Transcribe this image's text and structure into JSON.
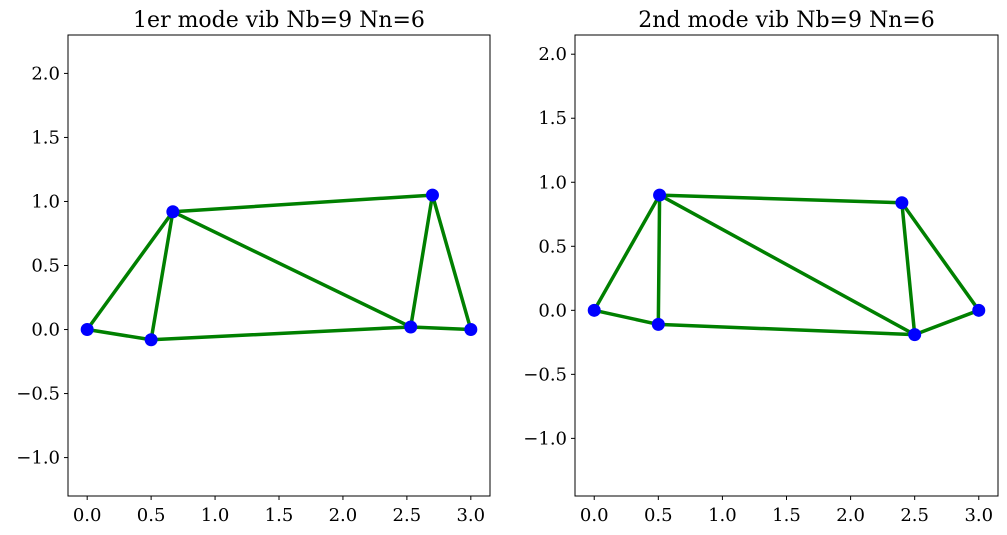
{
  "chart_data": [
    {
      "type": "line",
      "title": "1er mode vib Nb=9 Nn=6",
      "xlabel": "",
      "ylabel": "",
      "xlim": [
        -0.15,
        3.15
      ],
      "ylim": [
        -1.3,
        2.3
      ],
      "xticks": [
        0.0,
        0.5,
        1.0,
        1.5,
        2.0,
        2.5,
        3.0
      ],
      "xtick_labels": [
        "0.0",
        "0.5",
        "1.0",
        "1.5",
        "2.0",
        "2.5",
        "3.0"
      ],
      "yticks": [
        -1.0,
        -0.5,
        0.0,
        0.5,
        1.0,
        1.5,
        2.0
      ],
      "ytick_labels": [
        "−1.0",
        "−0.5",
        "0.0",
        "0.5",
        "1.0",
        "1.5",
        "2.0"
      ],
      "grid": false,
      "nodes": [
        {
          "x": 0.0,
          "y": 0.0
        },
        {
          "x": 0.5,
          "y": -0.08
        },
        {
          "x": 0.67,
          "y": 0.92
        },
        {
          "x": 2.53,
          "y": 0.02
        },
        {
          "x": 2.7,
          "y": 1.05
        },
        {
          "x": 3.0,
          "y": 0.0
        }
      ],
      "bars": [
        [
          0,
          1
        ],
        [
          0,
          2
        ],
        [
          1,
          2
        ],
        [
          1,
          3
        ],
        [
          2,
          3
        ],
        [
          2,
          4
        ],
        [
          3,
          4
        ],
        [
          3,
          5
        ],
        [
          4,
          5
        ]
      ],
      "bar_color": "#008000",
      "node_color": "#0000ff"
    },
    {
      "type": "line",
      "title": "2nd mode vib Nb=9 Nn=6",
      "xlabel": "",
      "ylabel": "",
      "xlim": [
        -0.15,
        3.15
      ],
      "ylim": [
        -1.45,
        2.15
      ],
      "xticks": [
        0.0,
        0.5,
        1.0,
        1.5,
        2.0,
        2.5,
        3.0
      ],
      "xtick_labels": [
        "0.0",
        "0.5",
        "1.0",
        "1.5",
        "2.0",
        "2.5",
        "3.0"
      ],
      "yticks": [
        -1.0,
        -0.5,
        0.0,
        0.5,
        1.0,
        1.5,
        2.0
      ],
      "ytick_labels": [
        "−1.0",
        "−0.5",
        "0.0",
        "0.5",
        "1.0",
        "1.5",
        "2.0"
      ],
      "grid": false,
      "nodes": [
        {
          "x": 0.0,
          "y": 0.0
        },
        {
          "x": 0.5,
          "y": -0.11
        },
        {
          "x": 0.51,
          "y": 0.9
        },
        {
          "x": 2.5,
          "y": -0.19
        },
        {
          "x": 2.4,
          "y": 0.84
        },
        {
          "x": 3.0,
          "y": 0.0
        }
      ],
      "bars": [
        [
          0,
          1
        ],
        [
          0,
          2
        ],
        [
          1,
          2
        ],
        [
          1,
          3
        ],
        [
          2,
          3
        ],
        [
          2,
          4
        ],
        [
          3,
          4
        ],
        [
          3,
          5
        ],
        [
          4,
          5
        ]
      ],
      "bar_color": "#008000",
      "node_color": "#0000ff"
    }
  ]
}
